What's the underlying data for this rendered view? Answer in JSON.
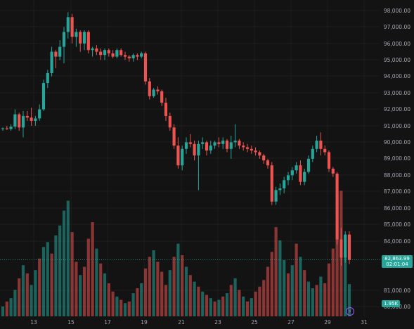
{
  "colors": {
    "up": "#26a69a",
    "down": "#ef5350",
    "grid": "#1e1e1e",
    "text": "#a3a6af",
    "bg": "#131313"
  },
  "price_axis": {
    "labels": [
      "98,000.00",
      "97,000.00",
      "96,000.00",
      "95,000.00",
      "94,000.00",
      "93,000.00",
      "92,000.00",
      "91,000.00",
      "90,000.00",
      "89,000.00",
      "88,000.00",
      "87,000.00",
      "86,000.00",
      "85,000.00",
      "84,000.00",
      "81,000.00",
      "80,000.00"
    ]
  },
  "time_axis": {
    "labels": [
      "13",
      "15",
      "17",
      "19",
      "21",
      "23",
      "25",
      "27",
      "29",
      "31"
    ]
  },
  "last_price": {
    "price": "82,863.99",
    "countdown": "02:01:04"
  },
  "volume_tag": "1.95K",
  "icons": {
    "bolt": "lightning-icon"
  },
  "chart_data": {
    "type": "candlestick",
    "y_range": [
      79700,
      98300
    ],
    "x_labels": [
      "13",
      "15",
      "17",
      "19",
      "21",
      "23",
      "25",
      "27",
      "29",
      "31"
    ],
    "candles": [
      [
        90800,
        90900,
        90700,
        90850
      ],
      [
        90850,
        91000,
        90750,
        90800
      ],
      [
        90800,
        91100,
        90700,
        90950
      ],
      [
        90950,
        92000,
        90800,
        91700
      ],
      [
        91700,
        91800,
        90700,
        90900
      ],
      [
        90900,
        91900,
        90300,
        91600
      ],
      [
        91600,
        91900,
        91300,
        91500
      ],
      [
        91500,
        92100,
        91000,
        91300
      ],
      [
        91300,
        91600,
        91000,
        91450
      ],
      [
        91450,
        92300,
        91300,
        92000
      ],
      [
        92000,
        93800,
        91900,
        93600
      ],
      [
        93600,
        94400,
        93300,
        94200
      ],
      [
        94200,
        95800,
        94000,
        95500
      ],
      [
        95500,
        95600,
        94500,
        95200
      ],
      [
        95200,
        96200,
        95000,
        95800
      ],
      [
        95800,
        97000,
        94800,
        96700
      ],
      [
        96700,
        97900,
        96300,
        97600
      ],
      [
        97600,
        97800,
        96000,
        96400
      ],
      [
        96400,
        96900,
        95800,
        96700
      ],
      [
        96700,
        96800,
        95500,
        96000
      ],
      [
        96000,
        96800,
        95600,
        96700
      ],
      [
        96700,
        96800,
        95400,
        95600
      ],
      [
        95600,
        95800,
        95200,
        95700
      ],
      [
        95700,
        95900,
        95300,
        95500
      ],
      [
        95500,
        95700,
        95000,
        95300
      ],
      [
        95300,
        95700,
        95000,
        95600
      ],
      [
        95600,
        95700,
        95200,
        95400
      ],
      [
        95400,
        95600,
        95100,
        95200
      ],
      [
        95200,
        95700,
        95100,
        95600
      ],
      [
        95600,
        95700,
        95200,
        95300
      ],
      [
        95300,
        95500,
        95000,
        95200
      ],
      [
        95200,
        95300,
        94900,
        95100
      ],
      [
        95100,
        95400,
        94900,
        95300
      ],
      [
        95300,
        95400,
        95000,
        95200
      ],
      [
        95200,
        95500,
        95100,
        95400
      ],
      [
        95400,
        95500,
        93500,
        93700
      ],
      [
        93700,
        93900,
        92600,
        92800
      ],
      [
        92800,
        93300,
        92700,
        93200
      ],
      [
        93200,
        93400,
        92900,
        93100
      ],
      [
        93100,
        93200,
        92200,
        92400
      ],
      [
        92400,
        92700,
        91300,
        91600
      ],
      [
        91600,
        91800,
        90700,
        90900
      ],
      [
        90900,
        91100,
        89600,
        89800
      ],
      [
        89800,
        90300,
        88400,
        88600
      ],
      [
        88600,
        89800,
        88300,
        89600
      ],
      [
        89600,
        90300,
        89300,
        90000
      ],
      [
        90000,
        90500,
        89700,
        89900
      ],
      [
        89900,
        90100,
        88900,
        89200
      ],
      [
        89200,
        90100,
        87100,
        89900
      ],
      [
        89900,
        90300,
        89600,
        90000
      ],
      [
        90000,
        90100,
        89200,
        89500
      ],
      [
        89500,
        90100,
        89300,
        89800
      ],
      [
        89800,
        90100,
        89600,
        90000
      ],
      [
        90000,
        90300,
        89700,
        89900
      ],
      [
        89900,
        90300,
        89600,
        90100
      ],
      [
        90100,
        90200,
        89400,
        89600
      ],
      [
        89600,
        90400,
        89000,
        90000
      ],
      [
        90000,
        91100,
        89700,
        90100
      ],
      [
        90100,
        90200,
        89600,
        89800
      ],
      [
        89800,
        90000,
        89500,
        89700
      ],
      [
        89700,
        89900,
        89400,
        89600
      ],
      [
        89600,
        89800,
        89300,
        89500
      ],
      [
        89500,
        89700,
        89200,
        89400
      ],
      [
        89400,
        89500,
        89000,
        89200
      ],
      [
        89200,
        89300,
        88700,
        88900
      ],
      [
        88900,
        89000,
        88400,
        88600
      ],
      [
        88600,
        88800,
        86200,
        86400
      ],
      [
        86400,
        87300,
        86200,
        87100
      ],
      [
        87100,
        87500,
        86800,
        87200
      ],
      [
        87200,
        87900,
        86900,
        87700
      ],
      [
        87700,
        88200,
        87400,
        88000
      ],
      [
        88000,
        88500,
        87700,
        88300
      ],
      [
        88300,
        88800,
        88100,
        88600
      ],
      [
        88600,
        88900,
        87400,
        87600
      ],
      [
        87600,
        88400,
        87400,
        88200
      ],
      [
        88200,
        89200,
        88100,
        89000
      ],
      [
        89000,
        89800,
        88800,
        89600
      ],
      [
        89600,
        90400,
        89400,
        90100
      ],
      [
        90100,
        90600,
        89200,
        89600
      ],
      [
        89600,
        89800,
        89200,
        89400
      ],
      [
        89400,
        89500,
        88200,
        88400
      ],
      [
        88400,
        88500,
        87900,
        88100
      ],
      [
        88100,
        88200,
        83800,
        84100
      ],
      [
        84100,
        84800,
        82500,
        83000
      ],
      [
        83000,
        84600,
        82700,
        84400
      ],
      [
        84400,
        84600,
        82600,
        82864
      ]
    ],
    "volumes": [
      [
        0.6,
        "up"
      ],
      [
        0.9,
        "down"
      ],
      [
        1.1,
        "up"
      ],
      [
        1.6,
        "up"
      ],
      [
        2.3,
        "down"
      ],
      [
        3.1,
        "up"
      ],
      [
        2.6,
        "down"
      ],
      [
        1.9,
        "up"
      ],
      [
        2.8,
        "up"
      ],
      [
        3.5,
        "down"
      ],
      [
        4.2,
        "up"
      ],
      [
        4.5,
        "up"
      ],
      [
        3.8,
        "down"
      ],
      [
        4.9,
        "up"
      ],
      [
        5.5,
        "up"
      ],
      [
        6.4,
        "up"
      ],
      [
        7.0,
        "up"
      ],
      [
        5.1,
        "down"
      ],
      [
        3.3,
        "down"
      ],
      [
        2.5,
        "up"
      ],
      [
        3.0,
        "down"
      ],
      [
        4.7,
        "down"
      ],
      [
        5.7,
        "down"
      ],
      [
        4.1,
        "up"
      ],
      [
        3.2,
        "down"
      ],
      [
        2.6,
        "up"
      ],
      [
        2.0,
        "down"
      ],
      [
        1.5,
        "down"
      ],
      [
        1.2,
        "up"
      ],
      [
        1.0,
        "down"
      ],
      [
        0.8,
        "up"
      ],
      [
        0.9,
        "down"
      ],
      [
        1.4,
        "up"
      ],
      [
        1.7,
        "down"
      ],
      [
        2.0,
        "up"
      ],
      [
        2.9,
        "down"
      ],
      [
        3.6,
        "down"
      ],
      [
        4.0,
        "up"
      ],
      [
        3.3,
        "down"
      ],
      [
        2.7,
        "down"
      ],
      [
        1.9,
        "down"
      ],
      [
        2.8,
        "up"
      ],
      [
        3.6,
        "down"
      ],
      [
        4.4,
        "up"
      ],
      [
        3.7,
        "down"
      ],
      [
        3.0,
        "up"
      ],
      [
        2.5,
        "down"
      ],
      [
        2.1,
        "up"
      ],
      [
        1.8,
        "down"
      ],
      [
        1.5,
        "up"
      ],
      [
        1.3,
        "down"
      ],
      [
        1.1,
        "up"
      ],
      [
        0.9,
        "down"
      ],
      [
        1.0,
        "up"
      ],
      [
        1.2,
        "down"
      ],
      [
        1.4,
        "up"
      ],
      [
        1.9,
        "down"
      ],
      [
        2.3,
        "up"
      ],
      [
        1.6,
        "down"
      ],
      [
        1.2,
        "up"
      ],
      [
        0.9,
        "down"
      ],
      [
        1.1,
        "up"
      ],
      [
        1.5,
        "down"
      ],
      [
        1.8,
        "down"
      ],
      [
        2.2,
        "down"
      ],
      [
        3.0,
        "down"
      ],
      [
        3.9,
        "down"
      ],
      [
        5.4,
        "down"
      ],
      [
        4.6,
        "up"
      ],
      [
        3.4,
        "up"
      ],
      [
        2.6,
        "down"
      ],
      [
        3.1,
        "up"
      ],
      [
        4.4,
        "down"
      ],
      [
        3.6,
        "up"
      ],
      [
        2.8,
        "down"
      ],
      [
        2.1,
        "up"
      ],
      [
        1.7,
        "up"
      ],
      [
        1.9,
        "down"
      ],
      [
        2.4,
        "up"
      ],
      [
        2.0,
        "down"
      ],
      [
        3.2,
        "down"
      ],
      [
        4.1,
        "down"
      ],
      [
        7.4,
        "down"
      ],
      [
        7.6,
        "down"
      ],
      [
        4.0,
        "up"
      ],
      [
        1.95,
        "up"
      ]
    ]
  }
}
